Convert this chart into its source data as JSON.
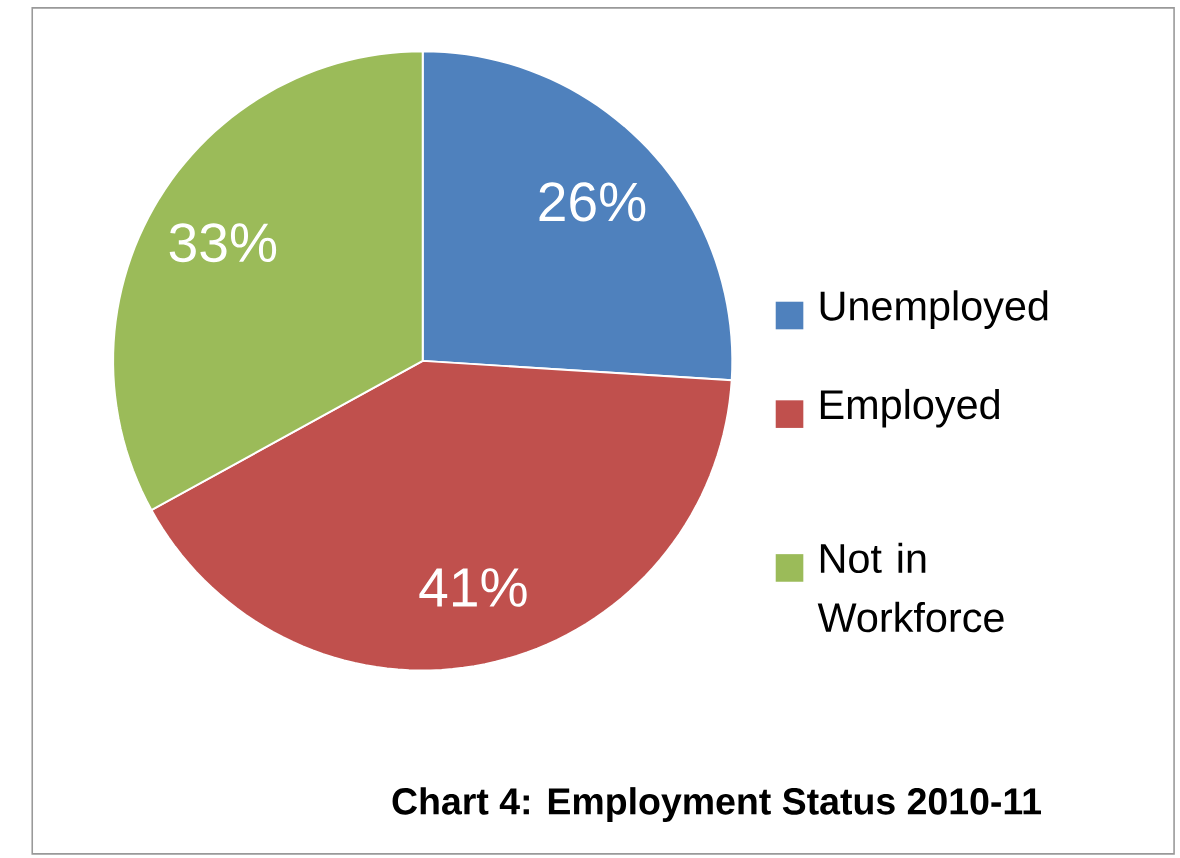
{
  "chart_data": {
    "type": "pie",
    "title": "Chart 4: Employment Status 2010-11",
    "categories": [
      "Unemployed",
      "Employed",
      "Not in Workforce"
    ],
    "values": [
      26,
      41,
      33
    ],
    "colors": [
      "#4f81bd",
      "#c0504d",
      "#9bbb59"
    ],
    "value_labels": [
      "26%",
      "41%",
      "33%"
    ],
    "legend": "right"
  }
}
